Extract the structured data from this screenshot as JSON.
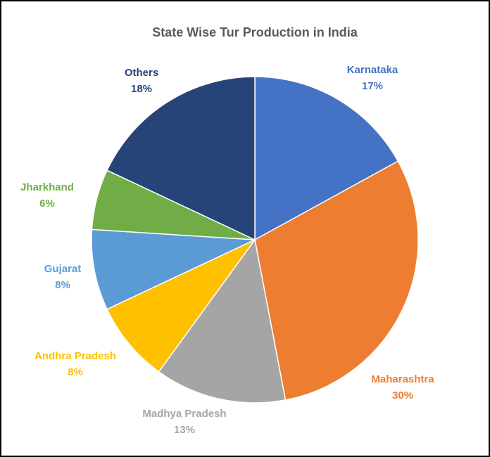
{
  "chart_data": {
    "type": "pie",
    "title": "State Wise Tur Production in India",
    "legend": "none",
    "slices": [
      {
        "name": "Karnataka",
        "value": 17,
        "label": "17%",
        "color": "#4472C4"
      },
      {
        "name": "Maharashtra",
        "value": 30,
        "label": "30%",
        "color": "#ED7D31"
      },
      {
        "name": "Madhya Pradesh",
        "value": 13,
        "label": "13%",
        "color": "#A5A5A5"
      },
      {
        "name": "Andhra Pradesh",
        "value": 8,
        "label": "8%",
        "color": "#FFC000"
      },
      {
        "name": "Gujarat",
        "value": 8,
        "label": "8%",
        "color": "#5B9BD5"
      },
      {
        "name": "Jharkhand",
        "value": 6,
        "label": "6%",
        "color": "#70AD47"
      },
      {
        "name": "Others",
        "value": 18,
        "label": "18%",
        "color": "#264478"
      }
    ]
  }
}
